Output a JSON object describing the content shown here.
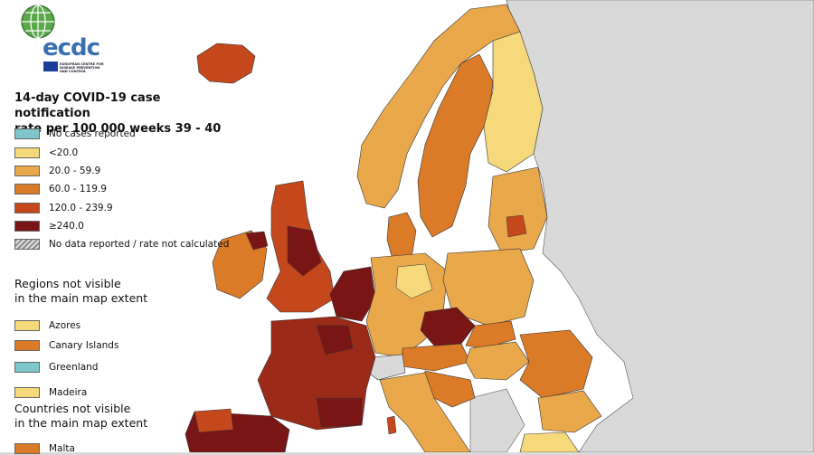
{
  "logo": {
    "text": "ecdc",
    "subtitle": "EUROPEAN CENTRE FOR DISEASE PREVENTION AND CONTROL"
  },
  "title": {
    "line1": "14-day COVID-19 case notification",
    "line2": "rate per 100 000 weeks 39 - 40"
  },
  "legend": [
    {
      "label": "No cases reported",
      "color": "#7fc6cc"
    },
    {
      "label": "<20.0",
      "color": "#f5d97b"
    },
    {
      "label": "20.0 - 59.9",
      "color": "#e9a84a"
    },
    {
      "label": "60.0 - 119.9",
      "color": "#db7a27"
    },
    {
      "label": "120.0 - 239.9",
      "color": "#c4481c"
    },
    {
      "label": "≥240.0",
      "color": "#7a1515"
    },
    {
      "label": "No data reported / rate not calculated",
      "color": "hatch"
    }
  ],
  "regions_not_visible": {
    "heading_line1": "Regions not visible",
    "heading_line2": "in the main map extent",
    "items": [
      {
        "label": "Azores",
        "color": "#f5d97b"
      },
      {
        "label": "Canary Islands",
        "color": "#db7a27"
      },
      {
        "label": "Greenland",
        "color": "#7fc6cc"
      },
      {
        "label": "Madeira",
        "color": "#f5d97b"
      }
    ]
  },
  "countries_not_visible": {
    "heading_line1": "Countries not visible",
    "heading_line2": "in the main map extent",
    "items": [
      {
        "label": "Malta",
        "color": "#db7a27"
      }
    ]
  },
  "colors": {
    "sea": "#ffffff",
    "non_eu_land": "#d9d9d9",
    "border": "#333333"
  }
}
